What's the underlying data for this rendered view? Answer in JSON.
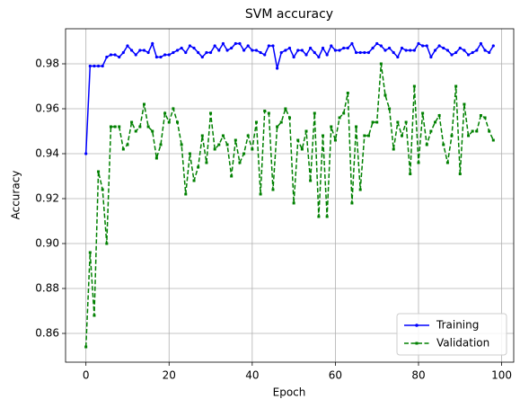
{
  "chart_data": {
    "type": "line",
    "title": "SVM accuracy",
    "x_label": "Epoch",
    "y_label": "Accuracy",
    "x": [
      0,
      1,
      2,
      3,
      4,
      5,
      6,
      7,
      8,
      9,
      10,
      11,
      12,
      13,
      14,
      15,
      16,
      17,
      18,
      19,
      20,
      21,
      22,
      23,
      24,
      25,
      26,
      27,
      28,
      29,
      30,
      31,
      32,
      33,
      34,
      35,
      36,
      37,
      38,
      39,
      40,
      41,
      42,
      43,
      44,
      45,
      46,
      47,
      48,
      49,
      50,
      51,
      52,
      53,
      54,
      55,
      56,
      57,
      58,
      59,
      60,
      61,
      62,
      63,
      64,
      65,
      66,
      67,
      68,
      69,
      70,
      71,
      72,
      73,
      74,
      75,
      76,
      77,
      78,
      79,
      80,
      81,
      82,
      83,
      84,
      85,
      86,
      87,
      88,
      89,
      90,
      91,
      92,
      93,
      94,
      95,
      96,
      97,
      98
    ],
    "series": [
      {
        "name": "Training",
        "color": "#0000ff",
        "linestyle": "solid",
        "values": [
          0.94,
          0.979,
          0.979,
          0.979,
          0.979,
          0.983,
          0.984,
          0.984,
          0.983,
          0.985,
          0.988,
          0.986,
          0.984,
          0.986,
          0.986,
          0.985,
          0.989,
          0.983,
          0.983,
          0.984,
          0.984,
          0.985,
          0.986,
          0.987,
          0.985,
          0.988,
          0.987,
          0.985,
          0.983,
          0.985,
          0.985,
          0.988,
          0.986,
          0.989,
          0.986,
          0.987,
          0.989,
          0.989,
          0.986,
          0.988,
          0.986,
          0.986,
          0.985,
          0.984,
          0.988,
          0.988,
          0.978,
          0.985,
          0.986,
          0.987,
          0.983,
          0.986,
          0.986,
          0.984,
          0.987,
          0.985,
          0.983,
          0.987,
          0.984,
          0.988,
          0.986,
          0.986,
          0.987,
          0.987,
          0.989,
          0.985,
          0.985,
          0.985,
          0.985,
          0.987,
          0.989,
          0.988,
          0.986,
          0.987,
          0.985,
          0.983,
          0.987,
          0.986,
          0.986,
          0.986,
          0.989,
          0.988,
          0.988,
          0.983,
          0.986,
          0.988,
          0.987,
          0.986,
          0.984,
          0.985,
          0.987,
          0.986,
          0.984,
          0.985,
          0.986,
          0.989,
          0.986,
          0.985,
          0.988
        ]
      },
      {
        "name": "Validation",
        "color": "#008000",
        "linestyle": "dashed",
        "values": [
          0.854,
          0.896,
          0.868,
          0.932,
          0.924,
          0.9,
          0.952,
          0.952,
          0.952,
          0.942,
          0.944,
          0.954,
          0.95,
          0.952,
          0.962,
          0.952,
          0.95,
          0.938,
          0.944,
          0.958,
          0.954,
          0.96,
          0.954,
          0.944,
          0.922,
          0.94,
          0.928,
          0.934,
          0.948,
          0.936,
          0.958,
          0.942,
          0.944,
          0.948,
          0.944,
          0.93,
          0.946,
          0.936,
          0.94,
          0.948,
          0.942,
          0.954,
          0.922,
          0.959,
          0.958,
          0.924,
          0.952,
          0.954,
          0.96,
          0.956,
          0.918,
          0.946,
          0.942,
          0.95,
          0.928,
          0.958,
          0.912,
          0.948,
          0.912,
          0.952,
          0.946,
          0.956,
          0.958,
          0.967,
          0.918,
          0.952,
          0.924,
          0.948,
          0.948,
          0.954,
          0.954,
          0.98,
          0.966,
          0.96,
          0.942,
          0.954,
          0.948,
          0.954,
          0.931,
          0.97,
          0.936,
          0.958,
          0.944,
          0.95,
          0.954,
          0.957,
          0.944,
          0.936,
          0.948,
          0.97,
          0.931,
          0.962,
          0.948,
          0.95,
          0.95,
          0.957,
          0.956,
          0.95,
          0.946
        ]
      }
    ],
    "xlim": [
      -4.9,
      102.9
    ],
    "ylim": [
      0.8472,
      0.9956
    ],
    "xticks": [
      0,
      20,
      40,
      60,
      80,
      100
    ],
    "yticks": [
      0.86,
      0.88,
      {
        "value": 0.9,
        "label": "0.90"
      },
      0.92,
      0.94,
      0.96,
      0.98
    ],
    "grid": true,
    "legend": "lower right"
  }
}
